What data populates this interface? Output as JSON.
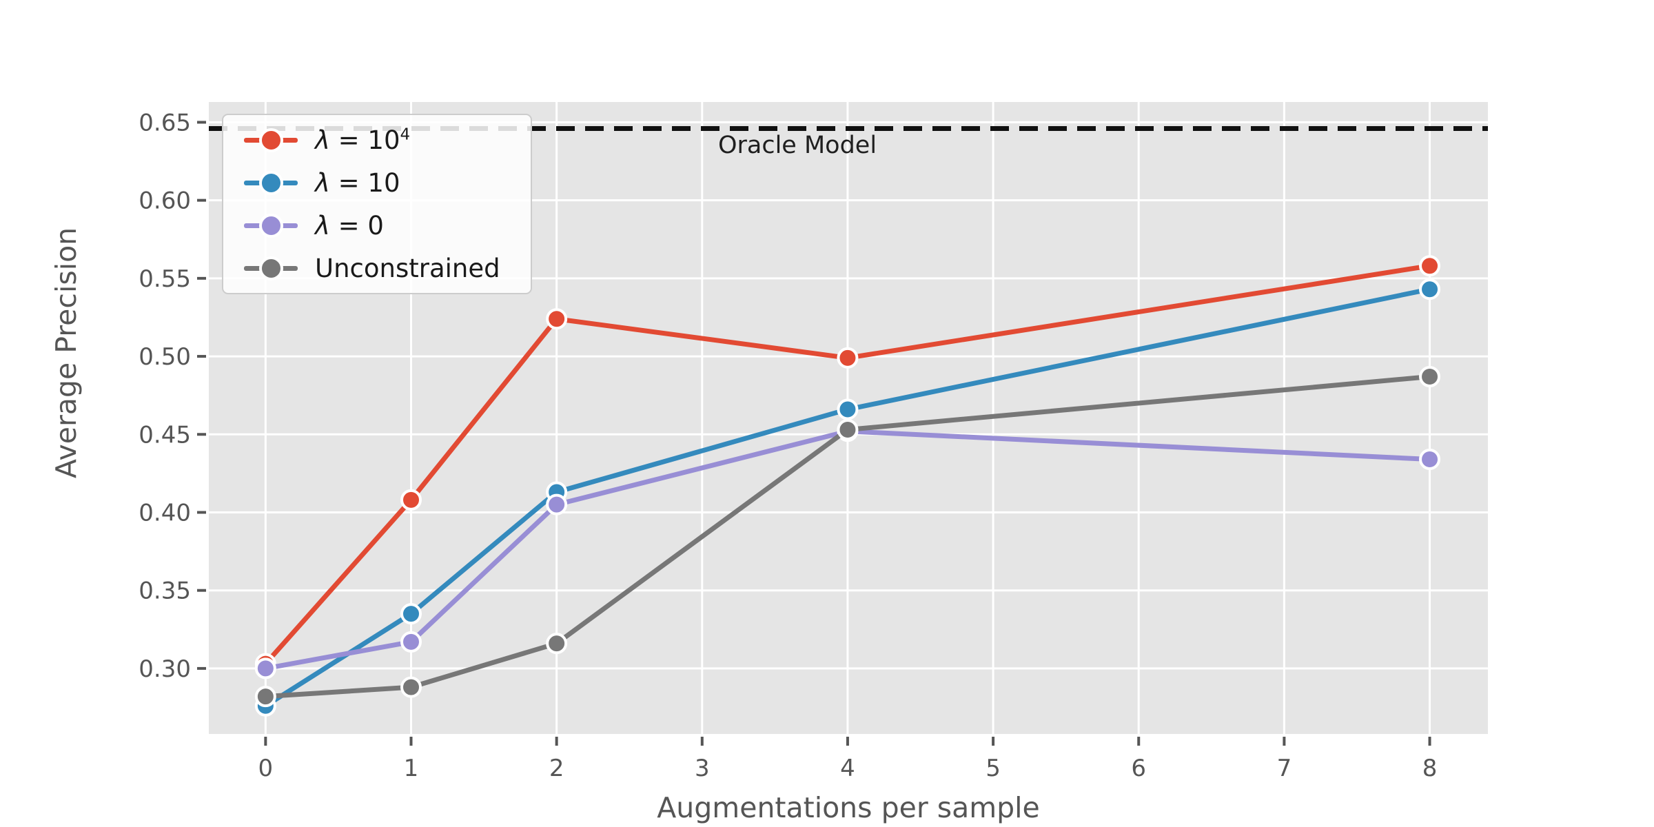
{
  "figure": {
    "plot_background": "#e5e5e5",
    "grid_color": "#ffffff",
    "tick_color": "#555555",
    "axis_label_color": "#555555",
    "legend_text_color": "#1a1a1a",
    "oracle_text_color": "#1f1f1f"
  },
  "chart_data": {
    "type": "line",
    "title": "",
    "xlabel": "Augmentations per sample",
    "ylabel": "Average Precision",
    "x": [
      0,
      1,
      2,
      4,
      8
    ],
    "series": [
      {
        "name": "lambda-1e4",
        "legend_base": "λ = 10",
        "legend_sup": "4",
        "color": "#E24A33",
        "values": [
          0.303,
          0.408,
          0.524,
          0.499,
          0.558
        ]
      },
      {
        "name": "lambda-10",
        "legend_base": "λ = 10",
        "legend_sup": "",
        "color": "#348ABD",
        "values": [
          0.276,
          0.335,
          0.413,
          0.466,
          0.543
        ]
      },
      {
        "name": "lambda-0",
        "legend_base": "λ = 0",
        "legend_sup": "",
        "color": "#988ED5",
        "values": [
          0.3,
          0.317,
          0.405,
          0.452,
          0.434
        ]
      },
      {
        "name": "unconstrained",
        "legend_base": "Unconstrained",
        "legend_sup": "",
        "color": "#777777",
        "values": [
          0.282,
          0.288,
          0.316,
          0.453,
          0.487
        ]
      }
    ],
    "oracle_line": {
      "label": "Oracle Model",
      "value": 0.646,
      "color": "#111111"
    },
    "x_tick_labels": [
      "0",
      "1",
      "2",
      "3",
      "4",
      "5",
      "6",
      "7",
      "8"
    ],
    "x_tick_values": [
      0,
      1,
      2,
      3,
      4,
      5,
      6,
      7,
      8
    ],
    "y_tick_labels": [
      "0.30",
      "0.35",
      "0.40",
      "0.45",
      "0.50",
      "0.55",
      "0.60",
      "0.65"
    ],
    "y_tick_values": [
      0.3,
      0.35,
      0.4,
      0.45,
      0.5,
      0.55,
      0.6,
      0.65
    ],
    "xlim": [
      -0.39,
      8.4
    ],
    "ylim": [
      0.258,
      0.663
    ],
    "grid": true,
    "legend_position": "upper-left"
  }
}
